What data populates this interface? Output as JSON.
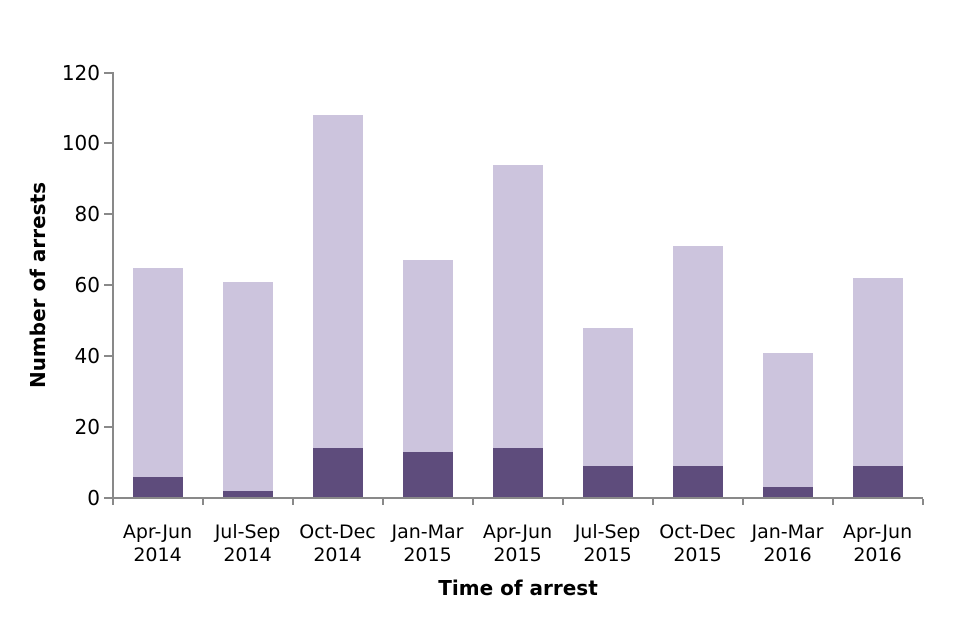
{
  "chart_data": {
    "type": "bar",
    "stacked": true,
    "title": "",
    "xlabel": "Time of arrest",
    "ylabel": "Number of arrests",
    "categories": [
      "Apr-Jun 2014",
      "Jul-Sep 2014",
      "Oct-Dec 2014",
      "Jan-Mar 2015",
      "Apr-Jun 2015",
      "Jul-Sep 2015",
      "Oct-Dec 2015",
      "Jan-Mar 2016",
      "Apr-Jun 2016"
    ],
    "series": [
      {
        "name": "lower-dark-segment",
        "color": "#5E4C7C",
        "values": [
          6,
          2,
          14,
          13,
          14,
          9,
          9,
          3,
          9
        ]
      },
      {
        "name": "upper-light-segment",
        "color": "#CCC4DD",
        "values": [
          59,
          59,
          94,
          54,
          80,
          39,
          62,
          38,
          53
        ]
      }
    ],
    "totals": [
      65,
      61,
      108,
      67,
      94,
      48,
      71,
      41,
      62
    ],
    "ylim": [
      0,
      120
    ],
    "yticks": [
      0,
      20,
      40,
      60,
      80,
      100,
      120
    ],
    "grid": false,
    "legend_position": "none",
    "axis_color": "#898989",
    "text_color": "#000000",
    "background_color": "#ffffff"
  }
}
